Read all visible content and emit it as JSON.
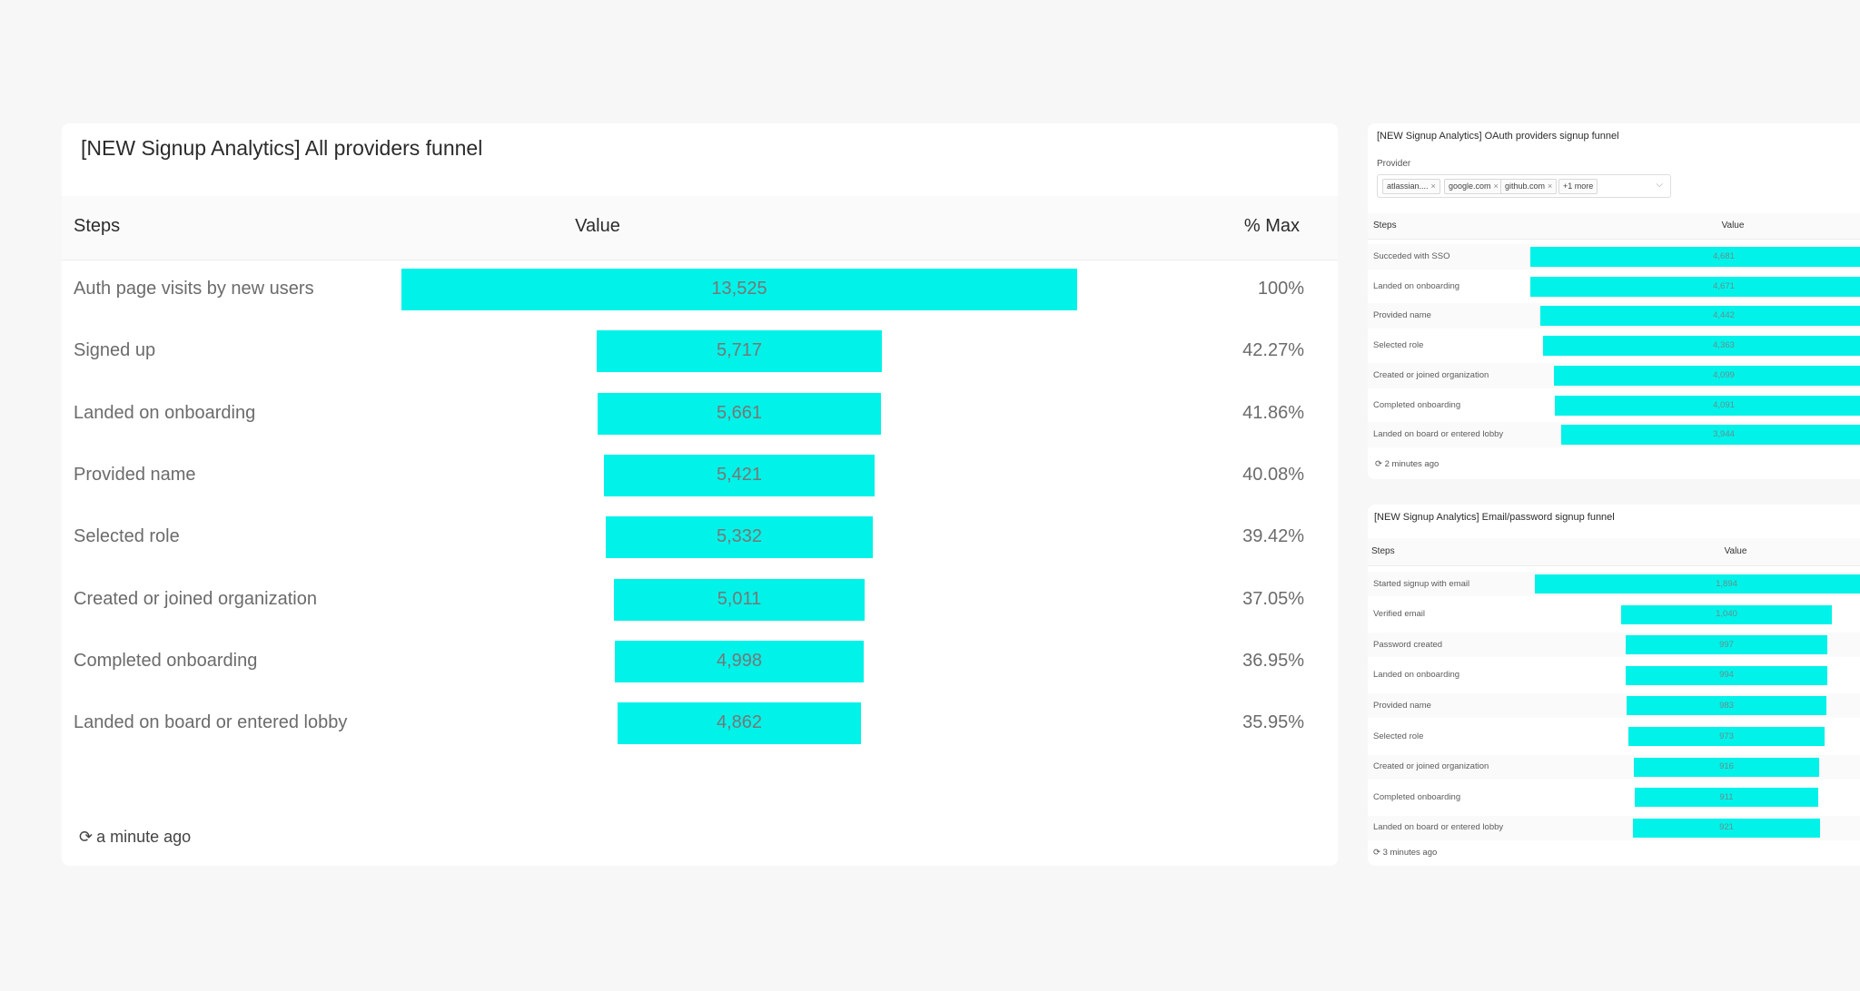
{
  "main": {
    "title": "[NEW Signup Analytics] All providers funnel",
    "headers": {
      "steps": "Steps",
      "value": "Value",
      "pct": "% Max"
    },
    "rows": [
      {
        "label": "Auth page visits by new users",
        "value": "13,525",
        "pct": "100%"
      },
      {
        "label": "Signed up",
        "value": "5,717",
        "pct": "42.27%"
      },
      {
        "label": "Landed on onboarding",
        "value": "5,661",
        "pct": "41.86%"
      },
      {
        "label": "Provided name",
        "value": "5,421",
        "pct": "40.08%"
      },
      {
        "label": "Selected role",
        "value": "5,332",
        "pct": "39.42%"
      },
      {
        "label": "Created or joined organization",
        "value": "5,011",
        "pct": "37.05%"
      },
      {
        "label": "Completed onboarding",
        "value": "4,998",
        "pct": "36.95%"
      },
      {
        "label": "Landed on board or entered lobby",
        "value": "4,862",
        "pct": "35.95%"
      }
    ],
    "updated": "a minute ago"
  },
  "oauth": {
    "title": "[NEW Signup Analytics] OAuth providers signup funnel",
    "provider_label": "Provider",
    "chips": [
      "atlassian....",
      "google.com",
      "github.com",
      "+1 more"
    ],
    "headers": {
      "steps": "Steps",
      "value": "Value"
    },
    "rows": [
      {
        "label": "Succeded with SSO",
        "value": "4,681"
      },
      {
        "label": "Landed on onboarding",
        "value": "4,671"
      },
      {
        "label": "Provided name",
        "value": "4,442"
      },
      {
        "label": "Selected role",
        "value": "4,363"
      },
      {
        "label": "Created or joined organization",
        "value": "4,099"
      },
      {
        "label": "Completed onboarding",
        "value": "4,091"
      },
      {
        "label": "Landed on board or entered lobby",
        "value": "3,944"
      }
    ],
    "updated": "2 minutes ago"
  },
  "email": {
    "title": "[NEW Signup Analytics] Email/password signup funnel",
    "headers": {
      "steps": "Steps",
      "value": "Value"
    },
    "rows": [
      {
        "label": "Started signup with email",
        "value": "1,894"
      },
      {
        "label": "Verified email",
        "value": "1,040"
      },
      {
        "label": "Password created",
        "value": "997"
      },
      {
        "label": "Landed on onboarding",
        "value": "994"
      },
      {
        "label": "Provided name",
        "value": "983"
      },
      {
        "label": "Selected role",
        "value": "973"
      },
      {
        "label": "Created or joined organization",
        "value": "916"
      },
      {
        "label": "Completed onboarding",
        "value": "911"
      },
      {
        "label": "Landed on board or entered lobby",
        "value": "921"
      }
    ],
    "updated": "3 minutes ago"
  },
  "colors": {
    "bar": "#00f2e8",
    "background": "#f7f7f8"
  },
  "icons": {
    "refresh": "refresh-icon",
    "chip_remove": "close-icon",
    "dropdown": "chevron-down-icon"
  }
}
